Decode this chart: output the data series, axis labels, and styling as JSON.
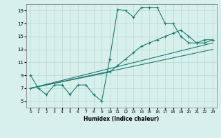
{
  "title": "",
  "xlabel": "Humidex (Indice chaleur)",
  "background_color": "#d8f0ec",
  "grid_color": "#b8d8d0",
  "line_color": "#1a7a6e",
  "xlim": [
    -0.5,
    23.5
  ],
  "ylim": [
    4,
    20
  ],
  "xticks": [
    0,
    1,
    2,
    3,
    4,
    5,
    6,
    7,
    8,
    9,
    10,
    11,
    12,
    13,
    14,
    15,
    16,
    17,
    18,
    19,
    20,
    21,
    22,
    23
  ],
  "yticks": [
    5,
    7,
    9,
    11,
    13,
    15,
    17,
    19
  ],
  "series1_x": [
    0,
    1,
    2,
    3,
    4,
    5,
    6,
    7,
    8,
    9,
    10,
    11,
    12,
    13,
    14,
    15,
    16,
    17,
    18,
    19,
    20,
    21,
    22,
    23
  ],
  "series1_y": [
    9,
    7,
    6,
    7.5,
    7.5,
    6,
    7.5,
    7.5,
    6,
    5,
    11.5,
    19.2,
    19.0,
    18,
    19.5,
    19.5,
    19.5,
    17.0,
    17.0,
    15.0,
    14.0,
    14.0,
    14.5,
    14.5
  ],
  "series2_x": [
    0,
    10,
    11,
    12,
    13,
    14,
    15,
    16,
    17,
    18,
    19,
    20,
    21,
    22,
    23
  ],
  "series2_y": [
    7,
    9.5,
    10.5,
    11.5,
    12.5,
    13.5,
    14.0,
    14.5,
    15.0,
    15.5,
    16.0,
    15.0,
    14.0,
    14.0,
    14.5
  ],
  "series3_x": [
    0,
    23
  ],
  "series3_y": [
    7,
    14.0
  ],
  "series4_x": [
    0,
    23
  ],
  "series4_y": [
    7,
    13.0
  ]
}
